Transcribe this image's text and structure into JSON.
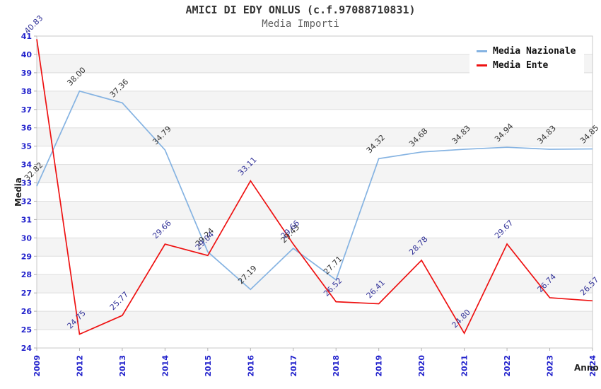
{
  "title": "AMICI DI EDY ONLUS (c.f.97088710831)",
  "subtitle": "Media Importi",
  "legend": {
    "position": "top-right",
    "items": [
      {
        "label": "Media Nazionale",
        "color": "#85b3e2"
      },
      {
        "label": "Media Ente",
        "color": "#ee1111"
      }
    ]
  },
  "colors": {
    "band": "#f4f4f4",
    "grid": "#dedede",
    "border": "#c8c8c8",
    "tick_mark": "#b0b0b0",
    "axis_tick_label": "#2323cc",
    "title_text": "#333333",
    "subtitle_text": "#606060"
  },
  "chart_data": {
    "type": "line",
    "title": "AMICI DI EDY ONLUS (c.f.97088710831)",
    "subtitle": "Media Importi",
    "xlabel": "Anno",
    "ylabel": "Media",
    "ylim": [
      24,
      41
    ],
    "y_tick_step": 1,
    "grid": true,
    "plot_bands": "alternating 1-unit horizontal bands, gray on odd lower bound",
    "legend_position": "top-right",
    "x_tick_labels": [
      "2009",
      "2012",
      "2013",
      "2014",
      "2015",
      "2016",
      "2017",
      "2018",
      "2019",
      "2020",
      "2021",
      "2022",
      "2023",
      "2024"
    ],
    "series": [
      {
        "name": "Media Nazionale",
        "color": "#85b3e2",
        "label_color": "#333333",
        "values": [
          32.82,
          38.0,
          37.36,
          34.79,
          29.24,
          27.19,
          29.43,
          27.71,
          34.32,
          34.68,
          34.83,
          34.94,
          34.83,
          34.85
        ],
        "point_labels": [
          "32.82",
          "38.00",
          "37.36",
          "34.79",
          "29.24",
          "27.19",
          "29.43",
          "27.71",
          "34.32",
          "34.68",
          "34.83",
          "34.94",
          "34.83",
          "34.85"
        ]
      },
      {
        "name": "Media Ente",
        "color": "#ee1111",
        "label_color": "#333399",
        "values": [
          40.83,
          24.75,
          25.77,
          29.66,
          29.04,
          33.11,
          29.66,
          26.52,
          26.41,
          28.78,
          24.8,
          29.67,
          26.74,
          26.57
        ],
        "point_labels": [
          "40.83",
          "24.75",
          "25.77",
          "29.66",
          "29.04",
          "33.11",
          "29.66",
          "26.52",
          "26.41",
          "28.78",
          "24.80",
          "29.67",
          "26.74",
          "26.57"
        ]
      }
    ]
  }
}
